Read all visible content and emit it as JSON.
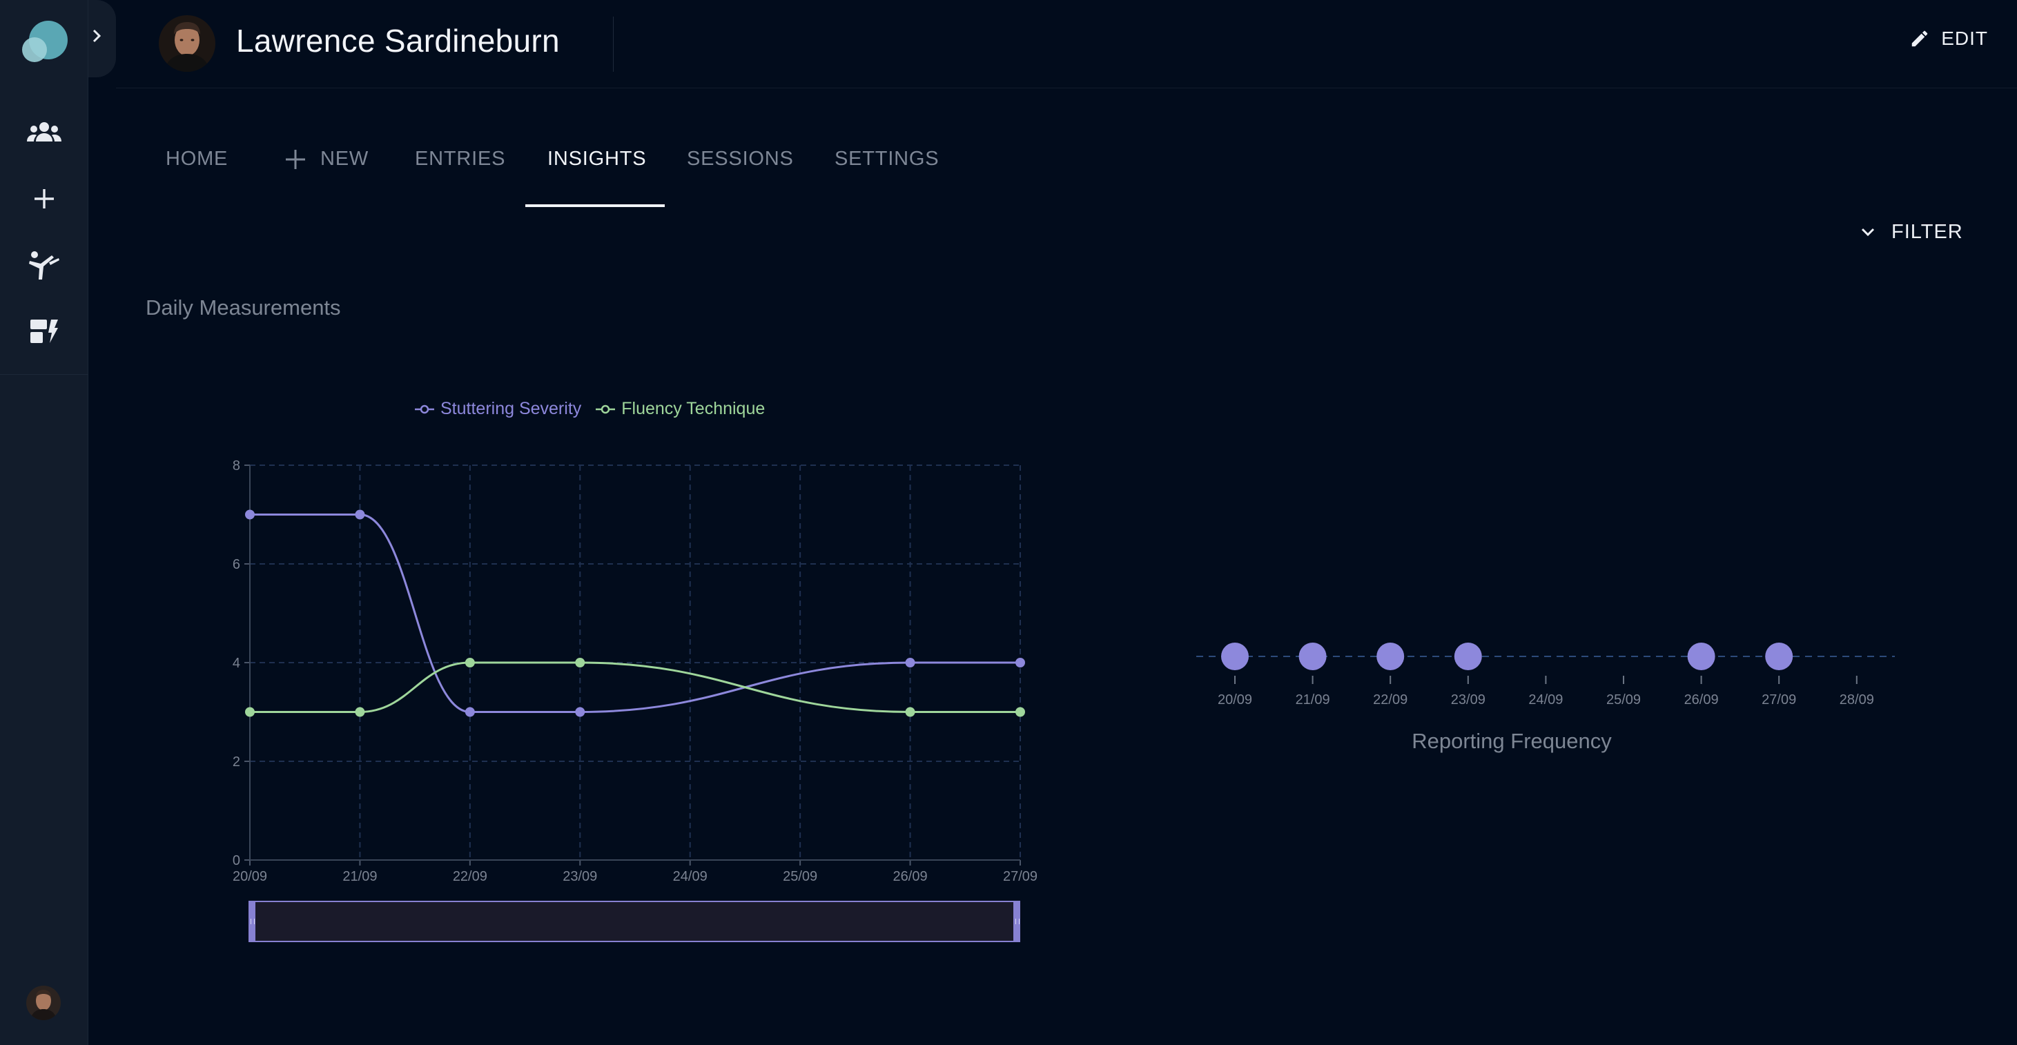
{
  "user": {
    "name": "Lawrence Sardineburn"
  },
  "header": {
    "edit_label": "EDIT"
  },
  "rail": {
    "items": [
      {
        "icon": "people-icon"
      },
      {
        "icon": "plus-icon"
      },
      {
        "icon": "exercise-icon"
      },
      {
        "icon": "dashboard-icon"
      }
    ]
  },
  "tabs": [
    {
      "label": "HOME",
      "active": false
    },
    {
      "label": "NEW",
      "active": false,
      "icon": "plus-icon"
    },
    {
      "label": "ENTRIES",
      "active": false
    },
    {
      "label": "INSIGHTS",
      "active": true
    },
    {
      "label": "SESSIONS",
      "active": false
    },
    {
      "label": "SETTINGS",
      "active": false
    }
  ],
  "filter_label": "FILTER",
  "section_title": "Daily Measurements",
  "colors": {
    "series1": "#8d88dc",
    "series2": "#9fd69b",
    "grid": "#1f3050",
    "axis_text": "#7b8392"
  },
  "chart_data": [
    {
      "type": "line",
      "title": "",
      "x": [
        "20/09",
        "21/09",
        "22/09",
        "23/09",
        "24/09",
        "25/09",
        "26/09",
        "27/09"
      ],
      "ylim": [
        0,
        8
      ],
      "yticks": [
        0,
        2,
        4,
        6,
        8
      ],
      "series": [
        {
          "name": "Stuttering Severity",
          "values": [
            7,
            7,
            3,
            3,
            null,
            null,
            4,
            4
          ]
        },
        {
          "name": "Fluency Technique",
          "values": [
            3,
            3,
            4,
            4,
            null,
            null,
            3,
            3
          ]
        }
      ],
      "legend_position": "top",
      "grid": true,
      "data_zoom": true
    },
    {
      "type": "scatter",
      "title": "Reporting Frequency",
      "x": [
        "20/09",
        "21/09",
        "22/09",
        "23/09",
        "24/09",
        "25/09",
        "26/09",
        "27/09",
        "28/09"
      ],
      "reported": [
        true,
        true,
        true,
        true,
        false,
        false,
        true,
        true,
        false
      ]
    }
  ]
}
